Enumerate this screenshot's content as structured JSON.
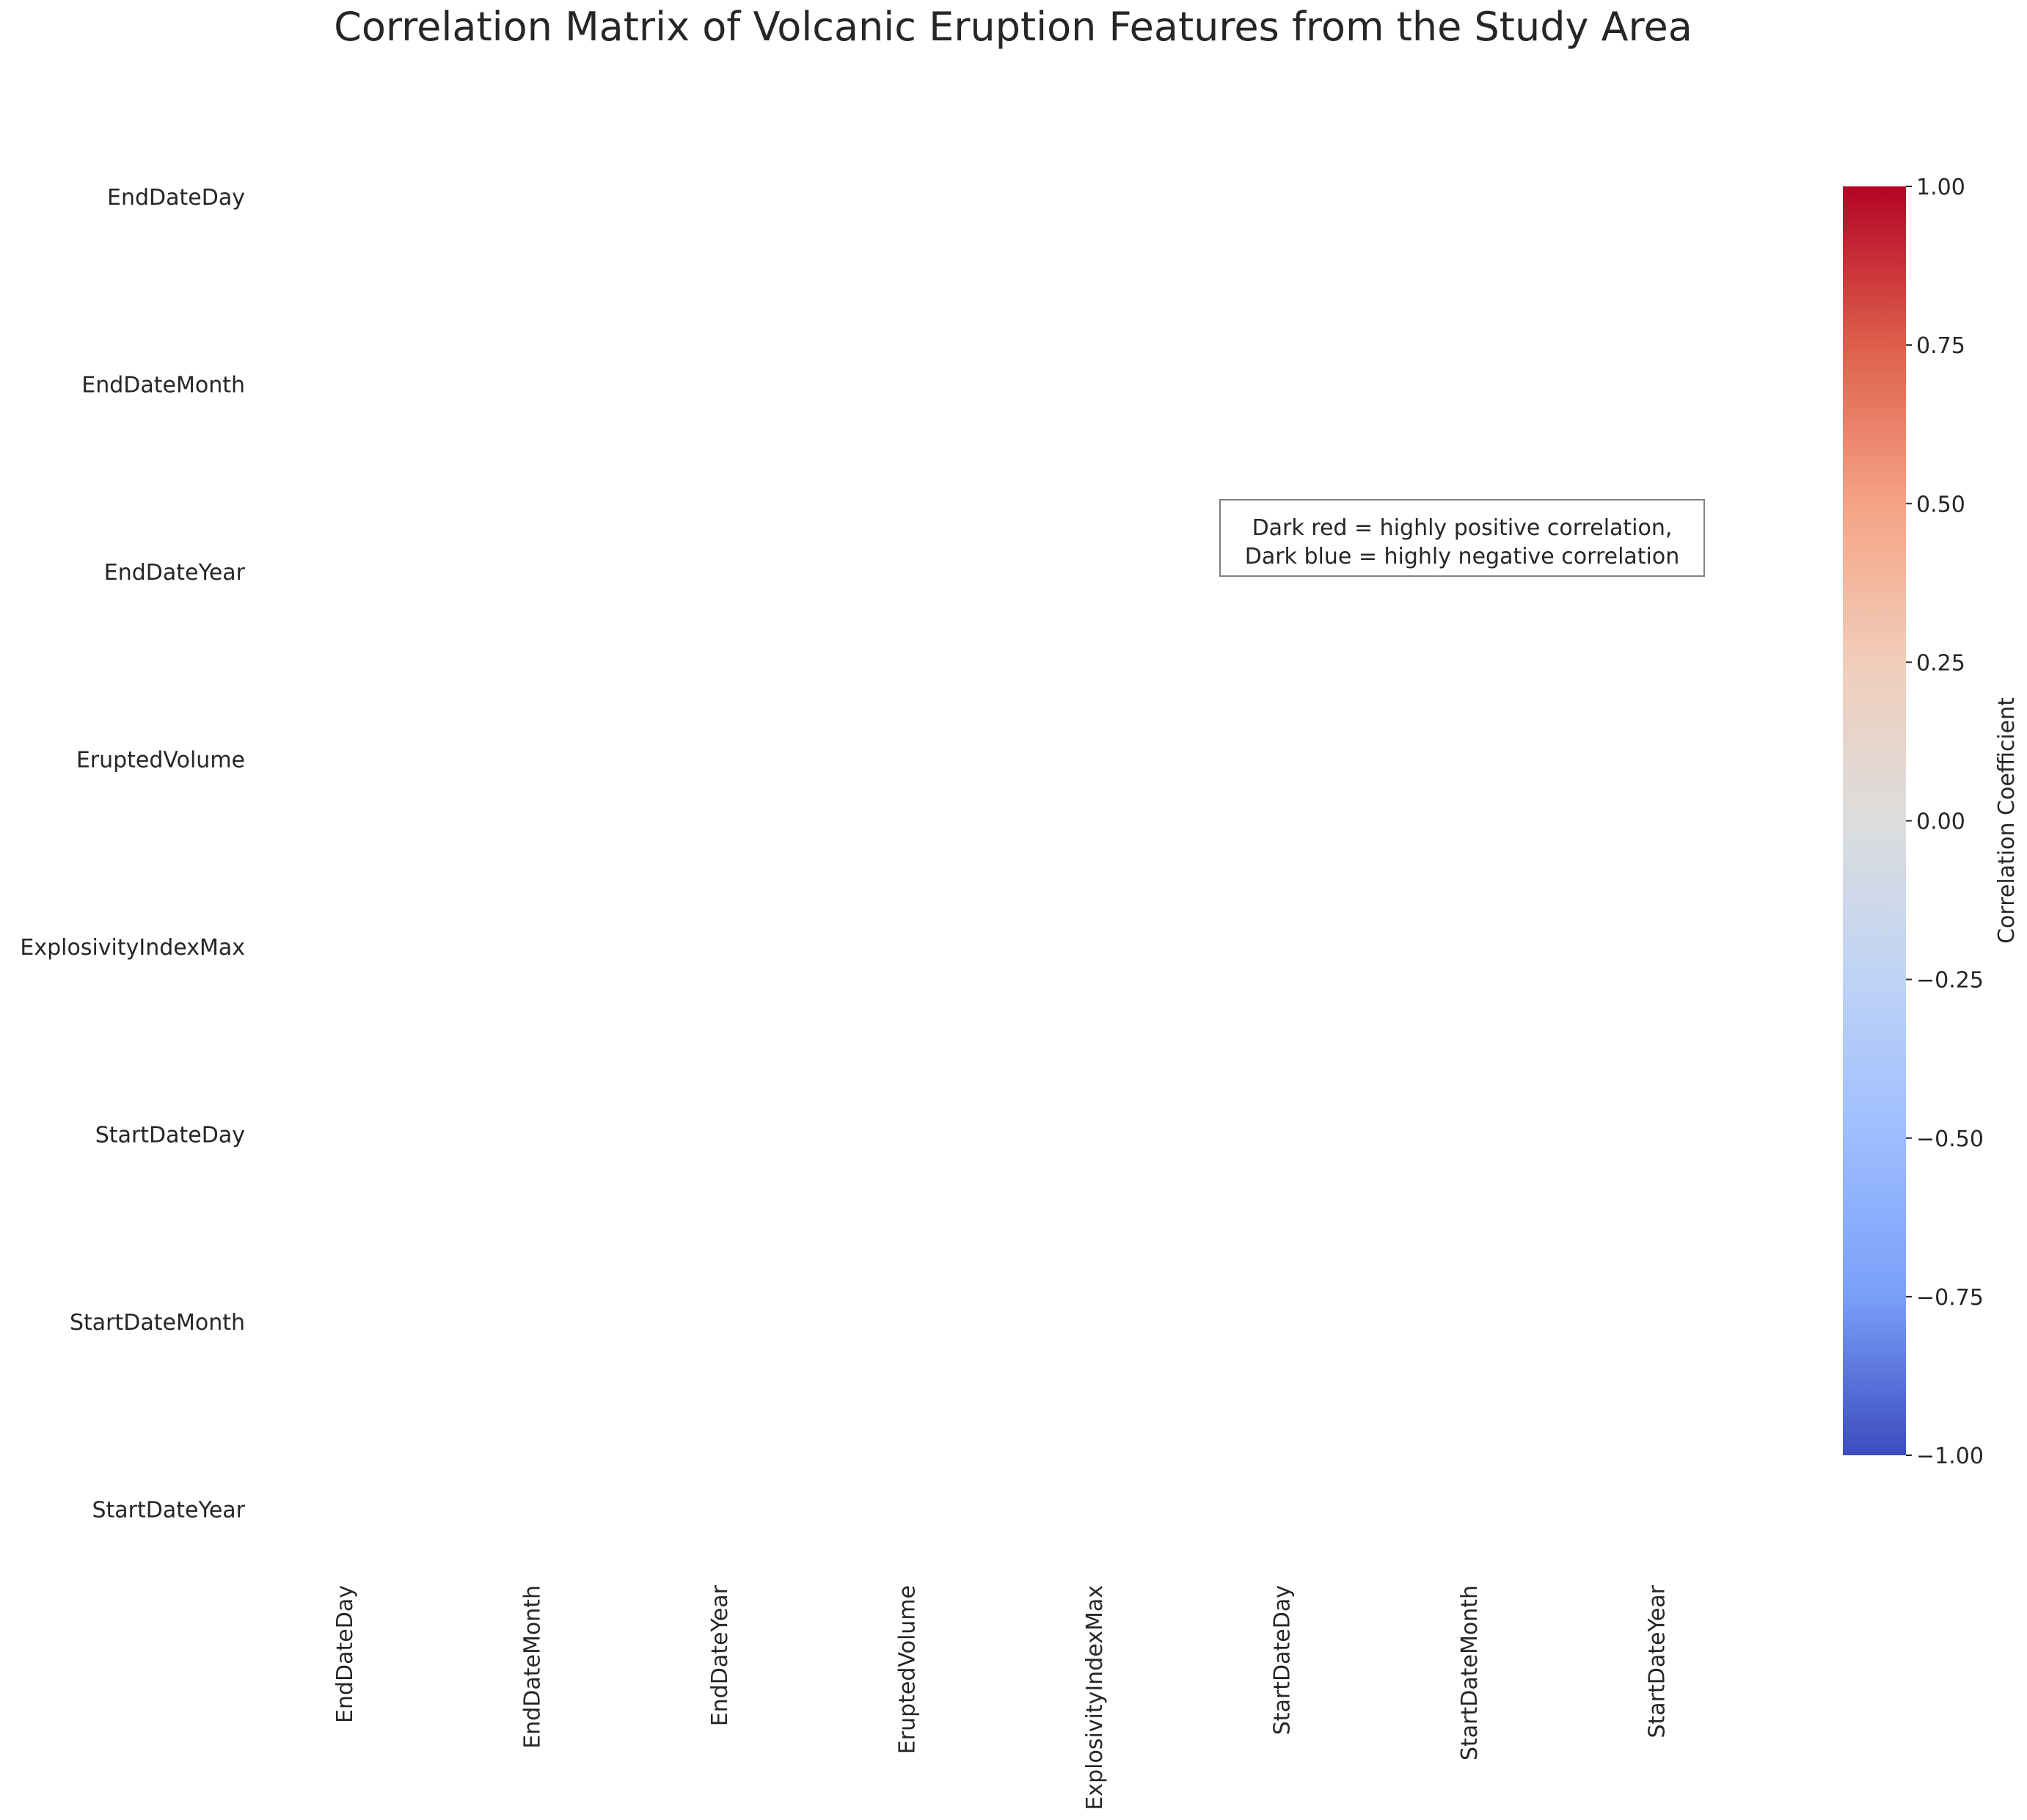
{
  "chart_data": {
    "type": "heatmap",
    "title": "Correlation Matrix of Volcanic Eruption Features from the Study Area",
    "row_labels": [
      "EndDateDay",
      "EndDateMonth",
      "EndDateYear",
      "EruptedVolume",
      "ExplosivityIndexMax",
      "StartDateDay",
      "StartDateMonth",
      "StartDateYear"
    ],
    "col_labels": [
      "EndDateDay",
      "EndDateMonth",
      "EndDateYear",
      "EruptedVolume",
      "ExplosivityIndexMax",
      "StartDateDay",
      "StartDateMonth",
      "StartDateYear"
    ],
    "values": [],
    "colorbar": {
      "label": "Correlation Coefficient",
      "range": [
        -1.0,
        1.0
      ],
      "ticks": [
        "1.00",
        "0.75",
        "0.50",
        "0.25",
        "0.00",
        "−0.25",
        "−0.50",
        "−0.75",
        "−1.00"
      ],
      "colormap": "coolwarm",
      "colors": [
        "#b40426",
        "#dd5f4b",
        "#f6a385",
        "#f1cdba",
        "#dcdddd",
        "#bfd3f6",
        "#9dbdff",
        "#7b9ff9",
        "#3b4cc0"
      ]
    },
    "annotation": {
      "lines": [
        "Dark red = highly positive correlation,",
        "Dark blue = highly negative correlation"
      ]
    },
    "grid": false
  }
}
